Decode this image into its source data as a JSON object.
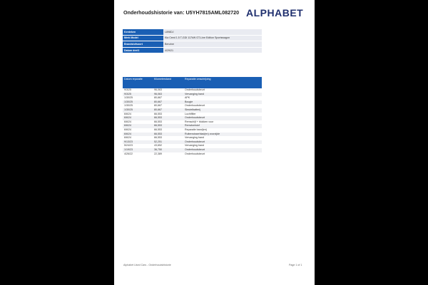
{
  "header": {
    "title": "Onderhoudshistorie van: U5YH7815AML082720",
    "logo": "ALPHABET"
  },
  "info": [
    {
      "label": "Kenteken",
      "value": "L898DJ"
    },
    {
      "label": "Merk Model",
      "value": "Kia Ceed 1.5 T-GDI 117kW GT-Line Edition Sportswagon"
    },
    {
      "label": "Brandstofsoort",
      "value": "Benzine"
    },
    {
      "label": "Datum deel1",
      "value": "4/29/21"
    }
  ],
  "repairs": {
    "columns": [
      "Datum reparatie",
      "Kilometerstand",
      "Reparatie omschrijving"
    ],
    "rows": [
      [
        "9/3/25",
        "96,063",
        "Onderhoudsbeurt"
      ],
      [
        "9/3/25",
        "96,063",
        "Vervanging band"
      ],
      [
        "1/30/25",
        "80,667",
        "APK"
      ],
      [
        "1/30/25",
        "80,667",
        "Bougie"
      ],
      [
        "1/30/25",
        "80,667",
        "Onderhoudsbeurt"
      ],
      [
        "1/30/25",
        "80,667",
        "Sleutelbatterij"
      ],
      [
        "6/6/24",
        "66,553",
        "Luchtfilter"
      ],
      [
        "6/6/24",
        "66,553",
        "Onderhoudsbeurt"
      ],
      [
        "6/6/24",
        "66,553",
        "Remschijf + blokken voor"
      ],
      [
        "6/6/24",
        "66,553",
        "Remvloeistof"
      ],
      [
        "6/6/24",
        "66,553",
        "Reparatie band(en)"
      ],
      [
        "6/6/24",
        "66,553",
        "Ruitenwisserblad(en) voorzijde"
      ],
      [
        "6/6/24",
        "66,553",
        "Vervanging band"
      ],
      [
        "9/13/23",
        "52,251",
        "Onderhoudsbeurt"
      ],
      [
        "5/24/23",
        "43,652",
        "Vervanging band"
      ],
      [
        "1/19/23",
        "36,750",
        "Onderhoudsbeurt"
      ],
      [
        "4/26/22",
        "22,389",
        "Onderhoudsbeurt"
      ]
    ]
  },
  "footer": {
    "left": "Alphabet Used Cars - Onderhoudshistorie",
    "right": "Page 1 of 1"
  },
  "colors": {
    "header_blue": "#1a5fb4",
    "logo": "#1f2f6e"
  }
}
